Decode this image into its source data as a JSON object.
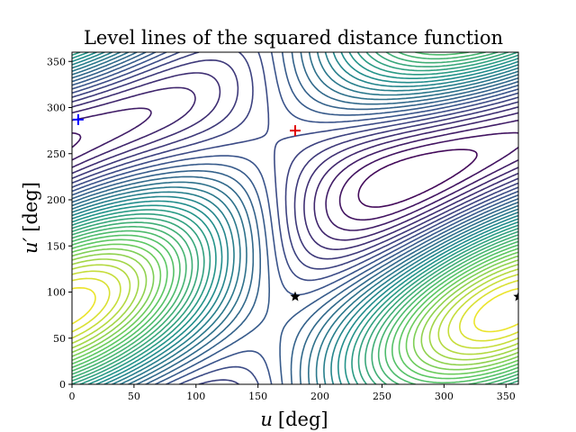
{
  "chart_data": {
    "type": "contour",
    "title": "Level lines of the squared distance function",
    "xlabel_var": "u",
    "xlabel_unit": "[deg]",
    "ylabel_var": "u′",
    "ylabel_unit": "[deg]",
    "xlim": [
      0,
      360
    ],
    "ylim": [
      0,
      360
    ],
    "xticks": [
      0,
      50,
      100,
      150,
      200,
      250,
      300,
      350
    ],
    "yticks": [
      0,
      50,
      100,
      150,
      200,
      250,
      300,
      350
    ],
    "colormap": "viridis",
    "grid": false,
    "markers": [
      {
        "name": "blue-plus",
        "symbol": "+",
        "color": "#0000ff",
        "x": 5,
        "y": 287
      },
      {
        "name": "red-plus",
        "symbol": "+",
        "color": "#e00000",
        "x": 180,
        "y": 275
      },
      {
        "name": "black-star-center",
        "symbol": "star",
        "color": "#000000",
        "x": 180,
        "y": 95
      },
      {
        "name": "black-star-edge",
        "symbol": "star",
        "color": "#000000",
        "x": 360,
        "y": 95
      }
    ]
  }
}
